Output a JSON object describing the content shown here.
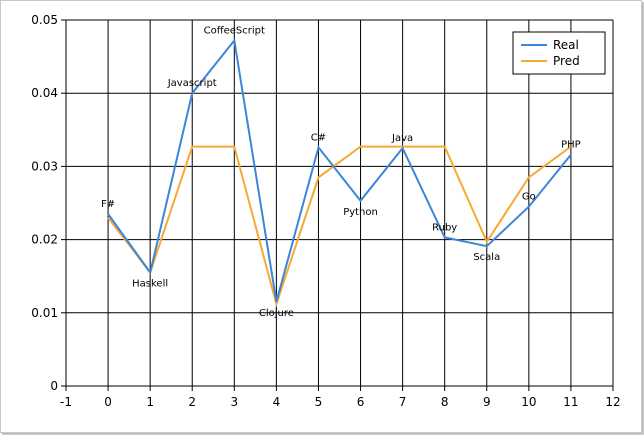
{
  "chart_data": {
    "type": "line",
    "title": "",
    "xlabel": "",
    "ylabel": "",
    "x": [
      0,
      1,
      2,
      3,
      4,
      5,
      6,
      7,
      8,
      9,
      10,
      11
    ],
    "point_labels": [
      "F#",
      "Haskell",
      "Javascript",
      "CoffeeScript",
      "Clojure",
      "C#",
      "Python",
      "Java",
      "Ruby",
      "Scala",
      "Go",
      "PHP"
    ],
    "series": [
      {
        "name": "Real",
        "color": "#3d85d8",
        "values": [
          0.0235,
          0.0155,
          0.04,
          0.0472,
          0.0115,
          0.0326,
          0.0253,
          0.0325,
          0.0203,
          0.0191,
          0.0245,
          0.0316
        ]
      },
      {
        "name": "Pred",
        "color": "#f7a934",
        "values": [
          0.023,
          0.0155,
          0.0327,
          0.0327,
          0.0112,
          0.0285,
          0.0327,
          0.0327,
          0.0327,
          0.0197,
          0.0285,
          0.0327
        ]
      }
    ],
    "xlim": [
      -1,
      12
    ],
    "ylim": [
      0,
      0.05
    ],
    "x_ticks": [
      "-1",
      "0",
      "1",
      "2",
      "3",
      "4",
      "5",
      "6",
      "7",
      "8",
      "9",
      "10",
      "11",
      "12"
    ],
    "y_ticks": [
      "0",
      "0.01",
      "0.02",
      "0.03",
      "0.04",
      "0.05"
    ],
    "grid": true,
    "legend_position": "top-right"
  }
}
